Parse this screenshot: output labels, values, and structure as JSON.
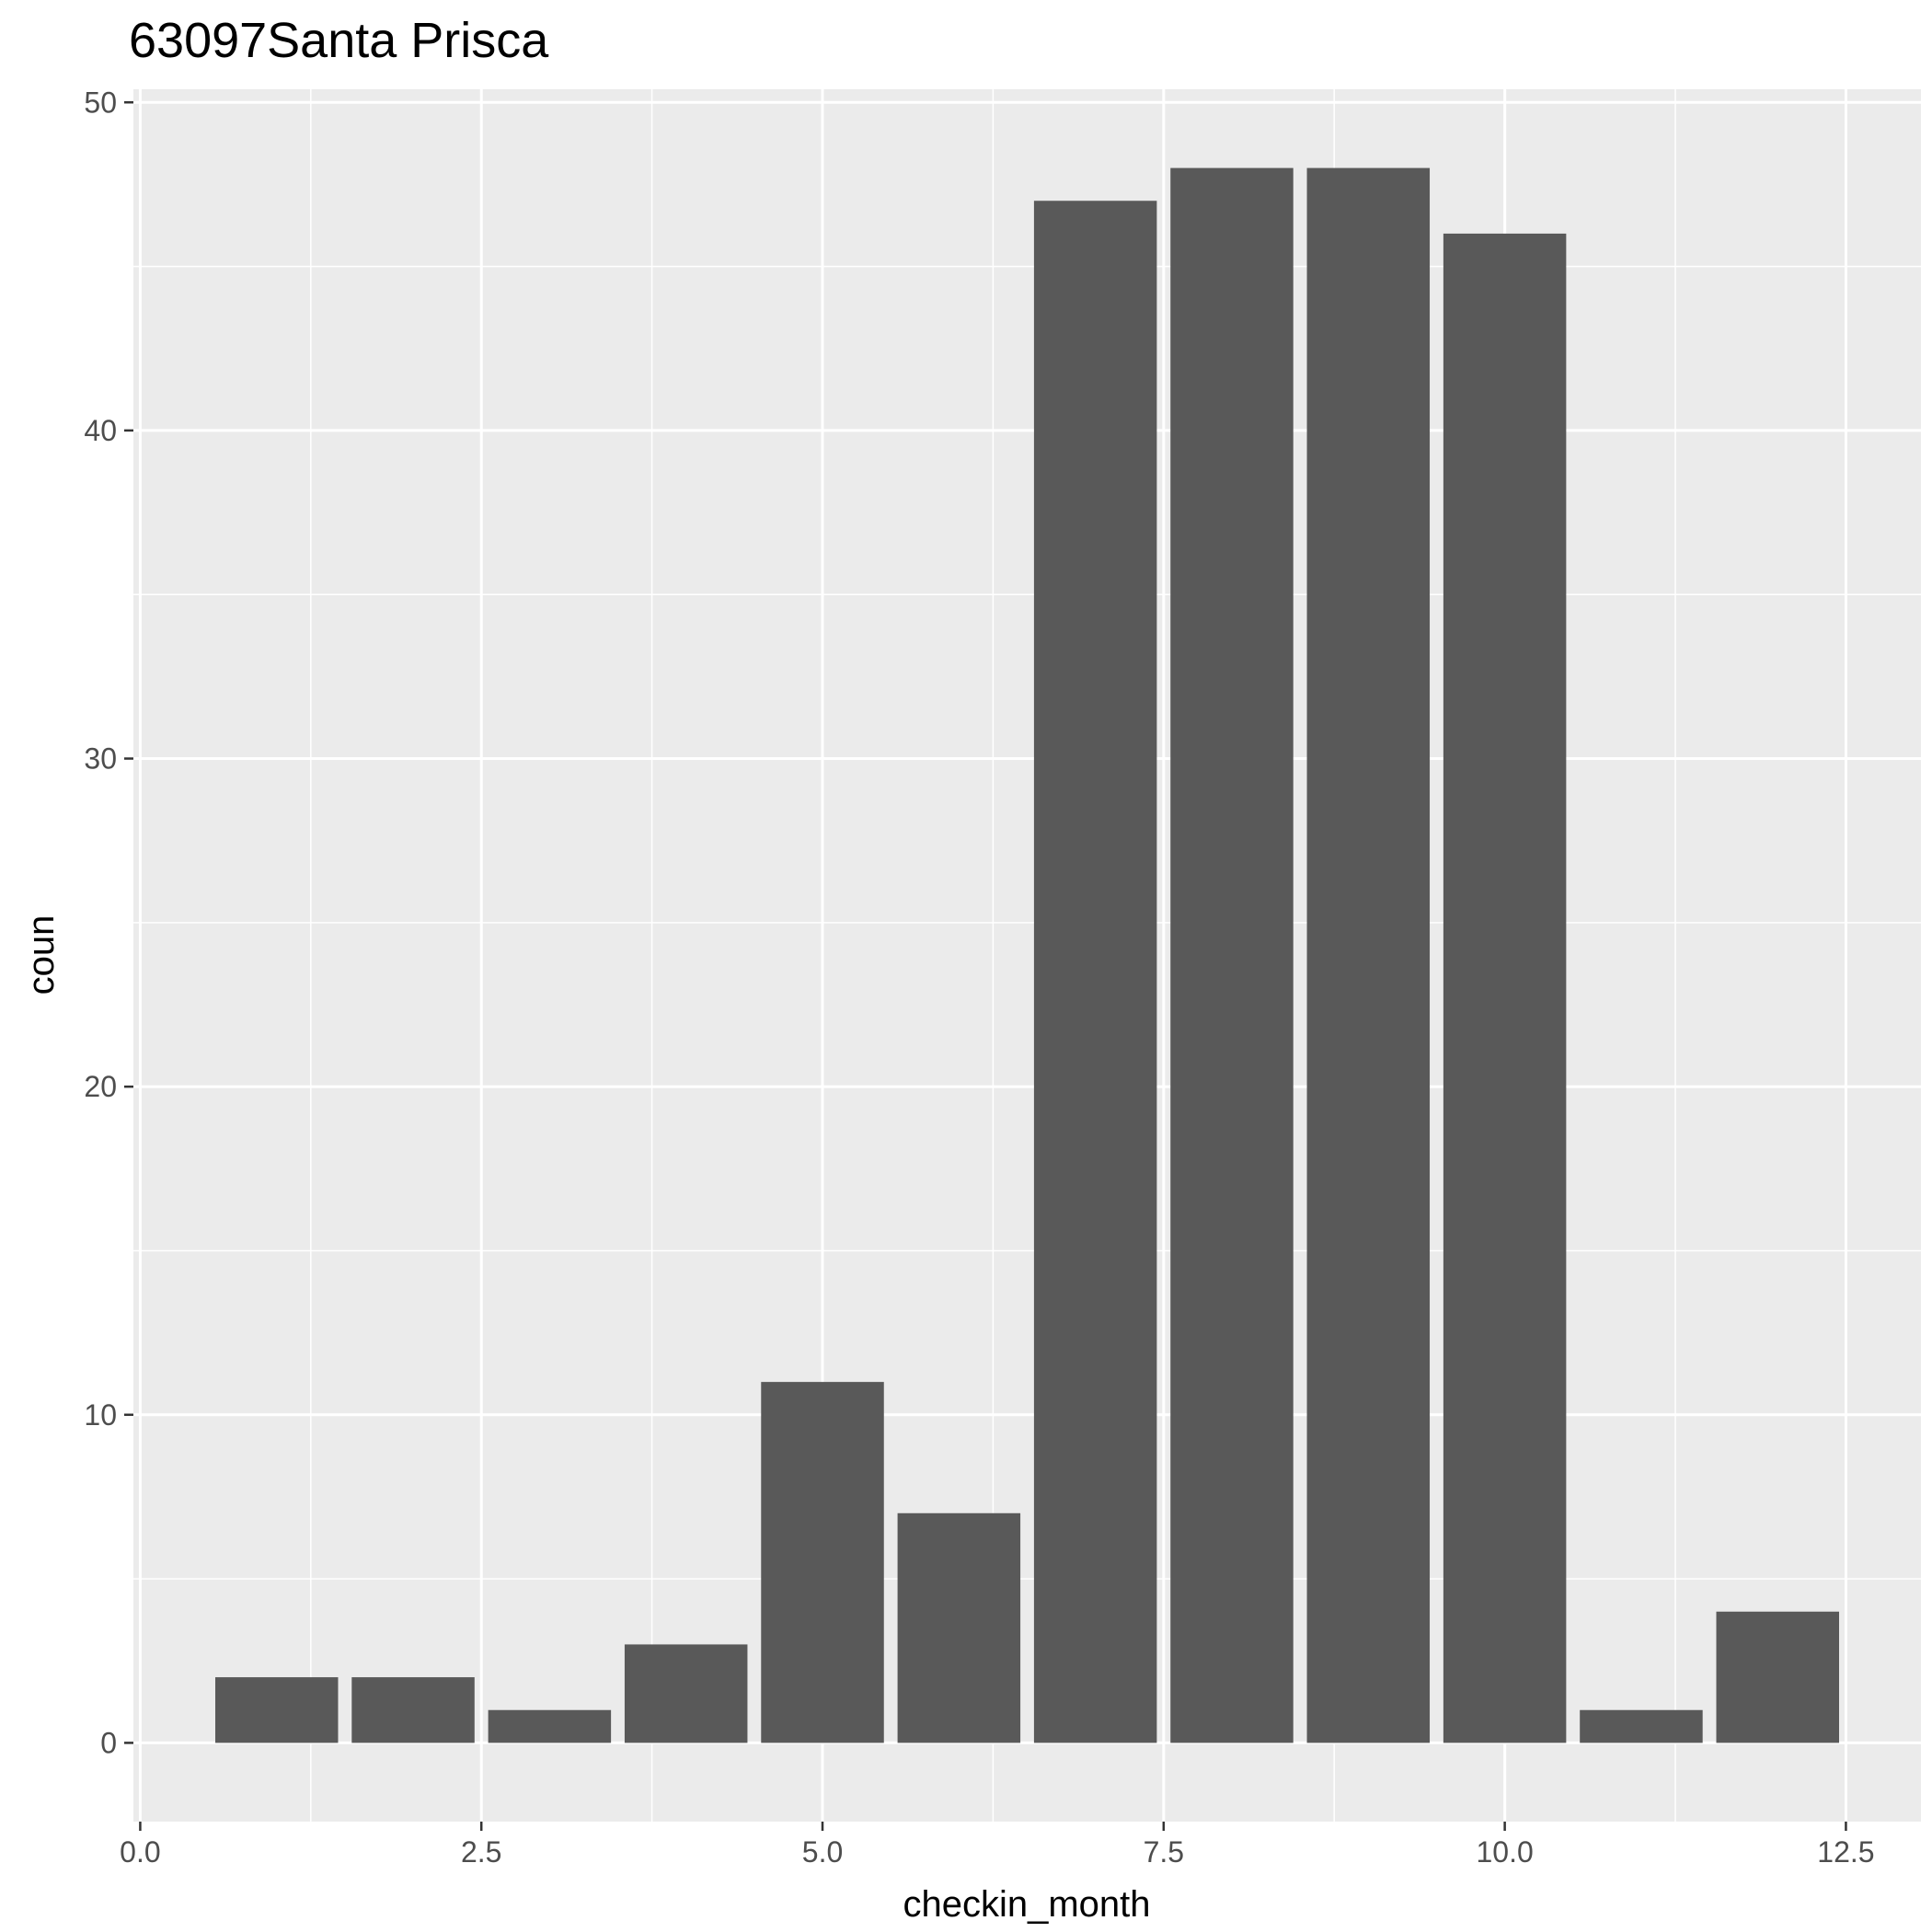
{
  "chart_data": {
    "type": "bar",
    "title": "63097Santa Prisca",
    "xlabel": "checkin_month",
    "ylabel": "coun",
    "x": [
      1,
      2,
      3,
      4,
      5,
      6,
      7,
      8,
      9,
      10,
      11,
      12
    ],
    "values": [
      2,
      2,
      1,
      3,
      11,
      7,
      47,
      48,
      48,
      46,
      1,
      4
    ],
    "xlim": [
      -0.05,
      13.05
    ],
    "ylim": [
      -2.4,
      50.4
    ],
    "x_ticks": [
      0,
      2.5,
      5,
      7.5,
      10,
      12.5
    ],
    "x_tick_labels": [
      "0.0",
      "2.5",
      "5.0",
      "7.5",
      "10.0",
      "12.5"
    ],
    "y_ticks": [
      0,
      10,
      20,
      30,
      40,
      50
    ],
    "y_tick_labels": [
      "0",
      "10",
      "20",
      "30",
      "40",
      "50"
    ],
    "grid": true,
    "legend": "none",
    "colors": {
      "panel_background": "#ebebeb",
      "grid_line": "#ffffff",
      "bar_fill": "#595959",
      "tick_label": "#4d4d4d",
      "axis_tick": "#333333"
    }
  }
}
